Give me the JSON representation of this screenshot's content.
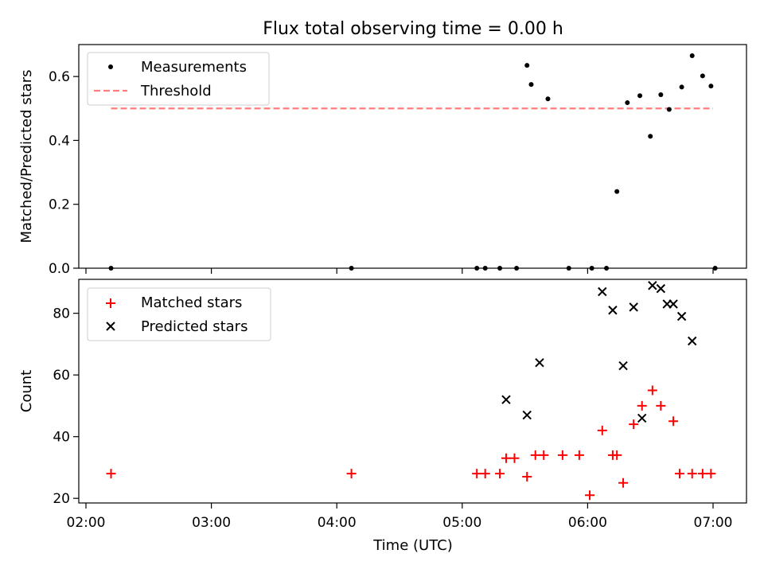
{
  "title": "Flux total observing time = 0.00 h",
  "colors": {
    "measurement": "#000000",
    "threshold": "#ff7f7f",
    "matched": "#ff0000",
    "predicted": "#000000"
  },
  "chart_data": [
    {
      "type": "scatter",
      "ylabel": "Matched/Predicted stars",
      "ylim": [
        0,
        0.7
      ],
      "yticks": [
        0.0,
        0.2,
        0.4,
        0.6
      ],
      "ytick_labels": [
        "0.0",
        "0.2",
        "0.4",
        "0.6"
      ],
      "legend_position": "top-left",
      "series": [
        {
          "name": "Measurements",
          "marker": "dot",
          "x": [
            "02:12",
            "04:07",
            "05:07",
            "05:11",
            "05:18",
            "05:26",
            "05:31",
            "05:33",
            "05:41",
            "05:51",
            "06:02",
            "06:09",
            "06:14",
            "06:19",
            "06:25",
            "06:30",
            "06:35",
            "06:39",
            "06:45",
            "06:50",
            "06:55",
            "06:59",
            "07:01"
          ],
          "y": [
            0.0,
            0.0,
            0.0,
            0.0,
            0.0,
            0.0,
            0.635,
            0.575,
            0.53,
            0.0,
            0.0,
            0.0,
            0.24,
            0.518,
            0.54,
            0.413,
            0.543,
            0.497,
            0.567,
            0.665,
            0.602,
            0.57,
            0.0
          ]
        }
      ],
      "threshold": {
        "name": "Threshold",
        "value": 0.5,
        "x_start": "02:12",
        "x_end": "07:00"
      }
    },
    {
      "type": "scatter",
      "xlabel": "Time (UTC)",
      "ylabel": "Count",
      "ylim": [
        18.5,
        91
      ],
      "yticks": [
        20,
        40,
        60,
        80
      ],
      "ytick_labels": [
        "20",
        "40",
        "60",
        "80"
      ],
      "xticks": [
        "02:00",
        "03:00",
        "04:00",
        "05:00",
        "06:00",
        "07:00"
      ],
      "legend_position": "top-left",
      "series": [
        {
          "name": "Matched stars",
          "marker": "plus",
          "x": [
            "02:12",
            "04:07",
            "05:07",
            "05:11",
            "05:18",
            "05:21",
            "05:25",
            "05:31",
            "05:35",
            "05:39",
            "05:48",
            "05:56",
            "06:01",
            "06:07",
            "06:12",
            "06:14",
            "06:17",
            "06:22",
            "06:26",
            "06:31",
            "06:35",
            "06:41",
            "06:44",
            "06:50",
            "06:55",
            "06:59"
          ],
          "y": [
            28,
            28,
            28,
            28,
            28,
            33,
            33,
            27,
            34,
            34,
            34,
            34,
            21,
            42,
            34,
            34,
            25,
            44,
            50,
            55,
            50,
            45,
            28,
            28,
            28,
            28
          ]
        },
        {
          "name": "Predicted stars",
          "marker": "x",
          "x": [
            "05:21",
            "05:31",
            "05:37",
            "06:07",
            "06:12",
            "06:17",
            "06:22",
            "06:26",
            "06:31",
            "06:35",
            "06:38",
            "06:41",
            "06:45",
            "06:50"
          ],
          "y": [
            52,
            47,
            64,
            87,
            81,
            63,
            82,
            46,
            89,
            88,
            83,
            83,
            79,
            71
          ]
        }
      ]
    }
  ]
}
